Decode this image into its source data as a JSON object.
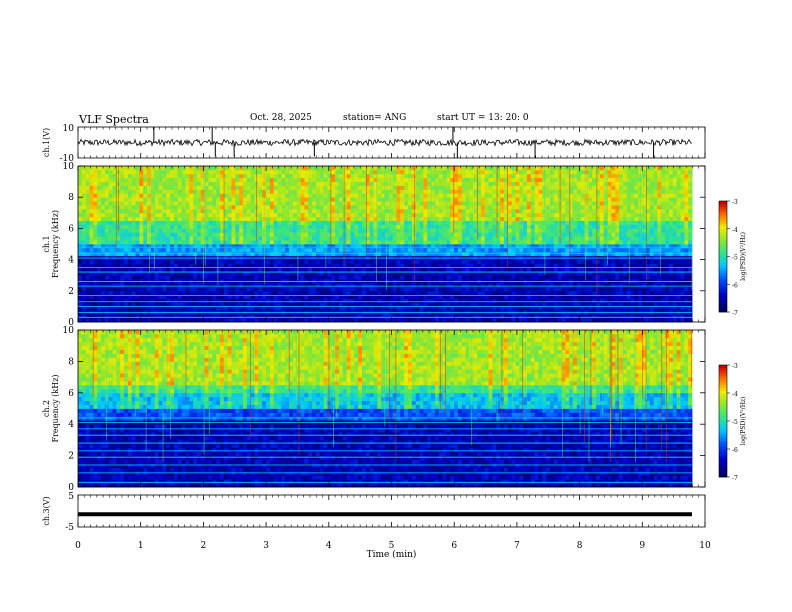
{
  "header": {
    "title": "VLF Spectra",
    "date": "Oct. 28, 2025",
    "station": "station= ANG",
    "start": "start  UT  =  13: 20: 0"
  },
  "chart_data": [
    {
      "type": "line",
      "name": "ch1-waveform",
      "ylabel": "ch.1(V)",
      "ylim": [
        -10,
        10
      ],
      "yticks": [
        10,
        -10
      ],
      "xlim": [
        0,
        10
      ],
      "spikes": [
        {
          "x": 1.21,
          "y": 10
        },
        {
          "x": 2.14,
          "y": 10
        },
        {
          "x": 2.19,
          "y": -9
        },
        {
          "x": 2.49,
          "y": -9
        },
        {
          "x": 3.77,
          "y": -9
        },
        {
          "x": 5.98,
          "y": 10
        },
        {
          "x": 6.05,
          "y": -10
        },
        {
          "x": 7.29,
          "y": -10
        },
        {
          "x": 9.18,
          "y": -10
        }
      ],
      "color": "#000000"
    },
    {
      "type": "heatmap",
      "name": "ch1-spectrogram",
      "ylabel_top": "ch.1",
      "ylabel": "Frequency  (kHz)",
      "ylim": [
        0,
        10
      ],
      "yticks": [
        "0",
        "2",
        "4",
        "6",
        "8",
        "10"
      ],
      "xlim": [
        0,
        10
      ],
      "colorbar": {
        "label": "log(PSD)(V²/Hz)",
        "ticks": [
          "-3",
          "-4",
          "-5",
          "-6",
          "-7"
        ],
        "range": [
          -7,
          -3
        ]
      }
    },
    {
      "type": "heatmap",
      "name": "ch2-spectrogram",
      "ylabel_top": "ch.2",
      "ylabel": "Frequency  (kHz)",
      "ylim": [
        0,
        10
      ],
      "yticks": [
        "0",
        "2",
        "4",
        "6",
        "8",
        "10"
      ],
      "xlim": [
        0,
        10
      ],
      "colorbar": {
        "label": "log(PSD)(V²/Hz)",
        "ticks": [
          "-3",
          "-4",
          "-5",
          "-6",
          "-7"
        ],
        "range": [
          -7,
          -3
        ]
      }
    },
    {
      "type": "line",
      "name": "ch3-waveform",
      "ylabel": "ch.3(V)",
      "ylim": [
        -5,
        5
      ],
      "yticks": [
        "5",
        "-5"
      ],
      "xlim": [
        0,
        10
      ],
      "level": -1,
      "xlabel": "Time  (min)",
      "xticks": [
        "0",
        "1",
        "2",
        "3",
        "4",
        "5",
        "6",
        "7",
        "8",
        "9",
        "10"
      ]
    }
  ]
}
